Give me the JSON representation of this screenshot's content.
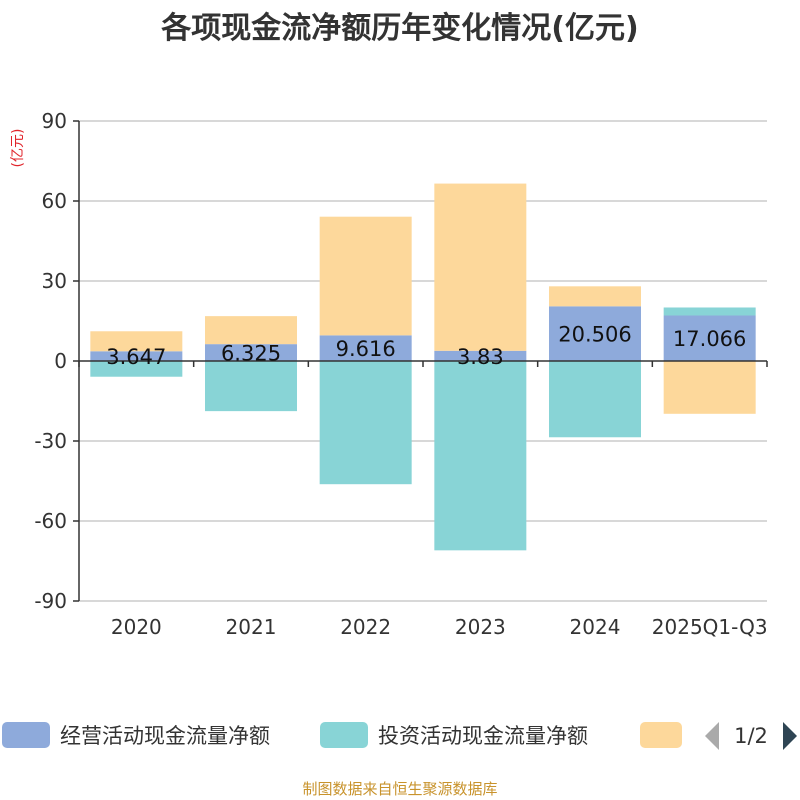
{
  "chart_data": {
    "type": "bar",
    "stacked": true,
    "title": "各项现金流净额历年变化情况(亿元)",
    "ylabel": "(亿元)",
    "xlabel": "",
    "categories": [
      "2020",
      "2021",
      "2022",
      "2023",
      "2024",
      "2025Q1-Q3"
    ],
    "ylim": [
      -90,
      90
    ],
    "yticks": [
      90,
      60,
      30,
      0,
      -30,
      -60,
      -90
    ],
    "grid": true,
    "series": [
      {
        "name": "经营活动现金流量净额",
        "color": "#8eaadb",
        "values": [
          3.647,
          6.325,
          9.616,
          3.83,
          20.506,
          17.066
        ],
        "labels": [
          "3.647",
          "6.325",
          "9.616",
          "3.83",
          "20.506",
          "17.066"
        ]
      },
      {
        "name": "投资活动现金流量净额",
        "color": "#88d4d6",
        "values": [
          -5.9,
          -18.8,
          -46.2,
          -71.0,
          -28.6,
          3.0
        ]
      },
      {
        "name": "",
        "color": "#fdd89b",
        "values": [
          7.5,
          10.5,
          44.5,
          62.7,
          7.5,
          -19.8
        ]
      }
    ],
    "legend": {
      "position": "bottom",
      "page": "1/2"
    },
    "source": "制图数据来自恒生聚源数据库"
  }
}
